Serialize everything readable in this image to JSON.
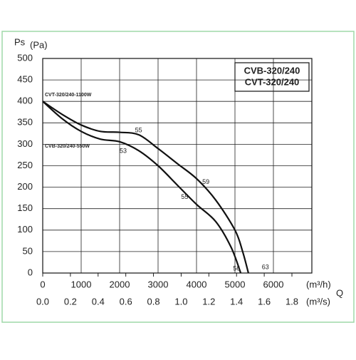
{
  "chart_data": {
    "type": "line",
    "y_label": "Ps",
    "y_unit": "(Pa)",
    "x_unit": "(m³/h)",
    "x2_unit": "(m³/s)",
    "x_label": "Q",
    "legend_lines": [
      "CVB-320/240",
      "CVT-320/240"
    ],
    "xlim": [
      0,
      7000
    ],
    "xticks": [
      0,
      1000,
      2000,
      3000,
      4000,
      5000,
      6000
    ],
    "x2lim": [
      0,
      1.944
    ],
    "x2ticks": [
      {
        "value": 0,
        "label": "0.0"
      },
      0.2,
      0.4,
      0.6,
      0.8,
      {
        "value": 1,
        "label": "1.0"
      },
      1.2,
      1.4,
      1.6,
      1.8
    ],
    "ylim": [
      0,
      500
    ],
    "yticks": [
      0,
      50,
      100,
      150,
      200,
      250,
      300,
      350,
      400,
      450,
      500
    ],
    "grid": true,
    "series": [
      {
        "name": "CVT-320/240-1100W",
        "color": "#111111",
        "x": [
          0,
          500,
          1000,
          1500,
          2000,
          2500,
          3000,
          3500,
          4000,
          4500,
          5000,
          5200,
          5350
        ],
        "values": [
          400,
          370,
          345,
          330,
          328,
          322,
          290,
          255,
          220,
          170,
          100,
          50,
          0
        ]
      },
      {
        "name": "CVB-320/240-550W",
        "color": "#111111",
        "x": [
          0,
          500,
          1000,
          1500,
          2000,
          2500,
          3000,
          3500,
          4000,
          4500,
          4900,
          5150
        ],
        "values": [
          400,
          360,
          330,
          312,
          306,
          285,
          250,
          205,
          160,
          120,
          60,
          0
        ]
      }
    ],
    "annotations": [
      {
        "x": 2400,
        "y": 332,
        "label": "55"
      },
      {
        "x": 2000,
        "y": 284,
        "label": "53"
      },
      {
        "x": 4150,
        "y": 212,
        "label": "59"
      },
      {
        "x": 3600,
        "y": 177,
        "label": "55"
      },
      {
        "x": 4950,
        "y": 10,
        "label": "56"
      },
      {
        "x": 5700,
        "y": 13,
        "label": "63"
      }
    ]
  }
}
